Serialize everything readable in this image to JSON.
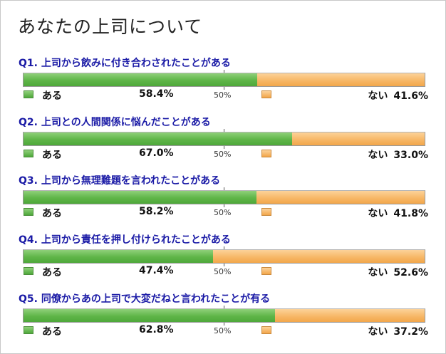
{
  "title": "あなたの上司について",
  "colors": {
    "yes": "#5fb548",
    "no": "#f7b868",
    "question": "#1a1aa6"
  },
  "labels": {
    "yes": "ある",
    "no": "ない",
    "midpoint": "50%"
  },
  "chart_data": {
    "type": "bar",
    "stacked": true,
    "orientation": "horizontal",
    "xlim": [
      0,
      100
    ],
    "categories": [
      "Q1. 上司から飲みに付き合わされたことがある",
      "Q2. 上司との人間関係に悩んだことがある",
      "Q3. 上司から無理難題を言われたことがある",
      "Q4. 上司から責任を押し付けられたことがある",
      "Q5. 同僚からあの上司で大変だねと言われたことが有る"
    ],
    "series": [
      {
        "name": "ある",
        "values": [
          58.4,
          67.0,
          58.2,
          47.4,
          62.8
        ]
      },
      {
        "name": "ない",
        "values": [
          41.6,
          33.0,
          41.8,
          52.6,
          37.2
        ]
      }
    ],
    "value_labels": {
      "yes": [
        "58.4%",
        "67.0%",
        "58.2%",
        "47.4%",
        "62.8%"
      ],
      "no": [
        "41.6%",
        "33.0%",
        "41.8%",
        "52.6%",
        "37.2%"
      ]
    }
  }
}
